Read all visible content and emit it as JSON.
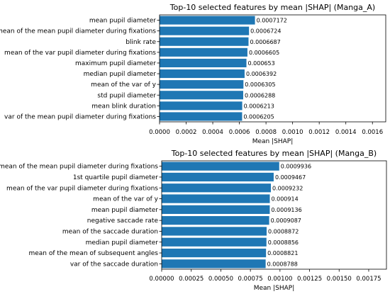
{
  "chart_data": [
    {
      "type": "bar",
      "orientation": "horizontal",
      "title": "Top-10 selected features by mean |SHAP| (Manga_A)",
      "xlabel": "Mean |SHAP|",
      "ylabel": "",
      "xlim": [
        0,
        0.0017
      ],
      "xticks": [
        0,
        0.0002,
        0.0004,
        0.0006,
        0.0008,
        0.001,
        0.0012,
        0.0014,
        0.0016
      ],
      "xtick_labels": [
        "0.0000",
        "0.0002",
        "0.0004",
        "0.0006",
        "0.0008",
        "0.0010",
        "0.0012",
        "0.0014",
        "0.0016"
      ],
      "grid": false,
      "bar_color": "#1f77b4",
      "categories": [
        "mean pupil diameter",
        "mean of the mean pupil diameter during fixations",
        "blink rate",
        "mean of the var pupil diameter during fixations",
        "maximum pupil diameter",
        "median pupil diameter",
        "mean of the var of y",
        "std pupil diameter",
        "mean blink duration",
        "var of the mean pupil diameter during fixations"
      ],
      "values": [
        0.0007172,
        0.0006724,
        0.0006687,
        0.0006605,
        0.000653,
        0.0006392,
        0.0006305,
        0.0006288,
        0.0006213,
        0.0006205
      ],
      "value_labels": [
        "0.0007172",
        "0.0006724",
        "0.0006687",
        "0.0006605",
        "0.000653",
        "0.0006392",
        "0.0006305",
        "0.0006288",
        "0.0006213",
        "0.0006205"
      ]
    },
    {
      "type": "bar",
      "orientation": "horizontal",
      "title": "Top-10 selected features by mean |SHAP| (Manga_B)",
      "xlabel": "Mean |SHAP|",
      "ylabel": "",
      "xlim": [
        0,
        0.0019
      ],
      "xticks": [
        0,
        0.00025,
        0.0005,
        0.00075,
        0.001,
        0.00125,
        0.0015,
        0.00175
      ],
      "xtick_labels": [
        "0.00000",
        "0.00025",
        "0.00050",
        "0.00075",
        "0.00100",
        "0.00125",
        "0.00150",
        "0.00175"
      ],
      "grid": false,
      "bar_color": "#1f77b4",
      "categories": [
        "mean of the mean pupil diameter during fixations",
        "1st quartile pupil diameter",
        "mean of the var pupil diameter during fixations",
        "mean of the var of y",
        "mean pupil diameter",
        "negative saccade rate",
        "mean of the saccade duration",
        "median pupil diameter",
        "mean of the mean of subsequent angles",
        "var of the saccade duration"
      ],
      "values": [
        0.0009936,
        0.0009467,
        0.0009232,
        0.000914,
        0.0009136,
        0.0009087,
        0.0008872,
        0.0008856,
        0.0008821,
        0.0008788
      ],
      "value_labels": [
        "0.0009936",
        "0.0009467",
        "0.0009232",
        "0.000914",
        "0.0009136",
        "0.0009087",
        "0.0008872",
        "0.0008856",
        "0.0008821",
        "0.0008788"
      ]
    }
  ]
}
